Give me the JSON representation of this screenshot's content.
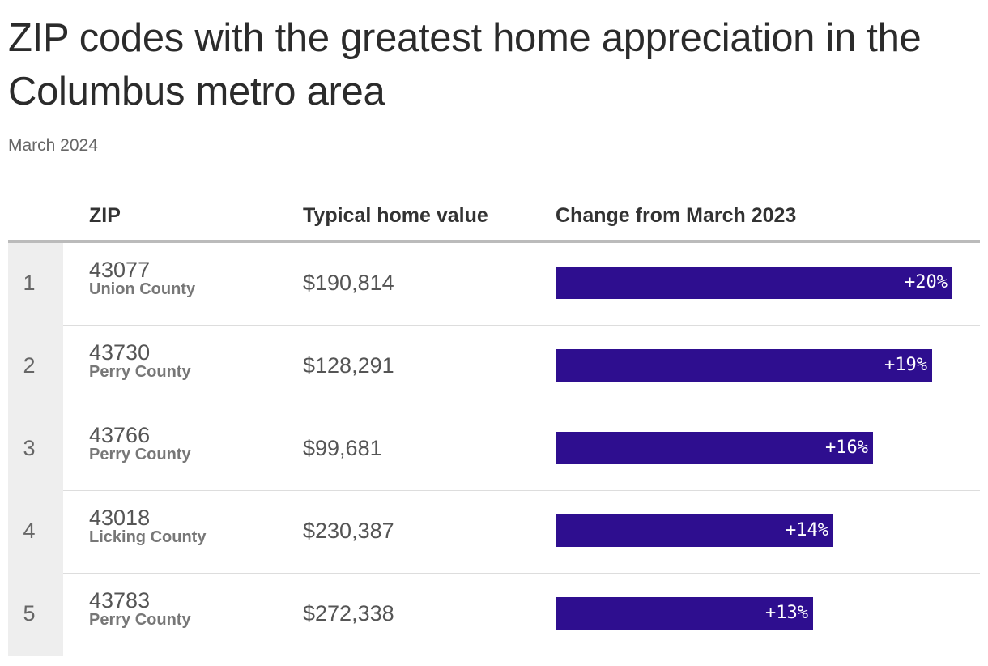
{
  "title": "ZIP codes with the greatest home appreciation in the Columbus metro area",
  "subtitle": "March 2024",
  "colors": {
    "bar": "#2e0e8f",
    "rank_column": "#eeeeee",
    "header_rule": "#bbbbbb"
  },
  "table": {
    "headers": {
      "rank": "",
      "zip": "ZIP",
      "value": "Typical home value",
      "change": "Change from March 2023"
    }
  },
  "chart_data": {
    "type": "table",
    "title": "ZIP codes with the greatest home appreciation in the Columbus metro area",
    "subtitle": "March 2024",
    "columns": [
      "ZIP",
      "Typical home value",
      "Change from March 2023"
    ],
    "bar_max_percent": 21,
    "rows": [
      {
        "rank": "1",
        "zip": "43077",
        "county": "Union County",
        "value": "$190,814",
        "change": 20,
        "change_label": "+20%"
      },
      {
        "rank": "2",
        "zip": "43730",
        "county": "Perry County",
        "value": "$128,291",
        "change": 19,
        "change_label": "+19%"
      },
      {
        "rank": "3",
        "zip": "43766",
        "county": "Perry County",
        "value": "$99,681",
        "change": 16,
        "change_label": "+16%"
      },
      {
        "rank": "4",
        "zip": "43018",
        "county": "Licking County",
        "value": "$230,387",
        "change": 14,
        "change_label": "+14%"
      },
      {
        "rank": "5",
        "zip": "43783",
        "county": "Perry County",
        "value": "$272,338",
        "change": 13,
        "change_label": "+13%"
      }
    ]
  }
}
